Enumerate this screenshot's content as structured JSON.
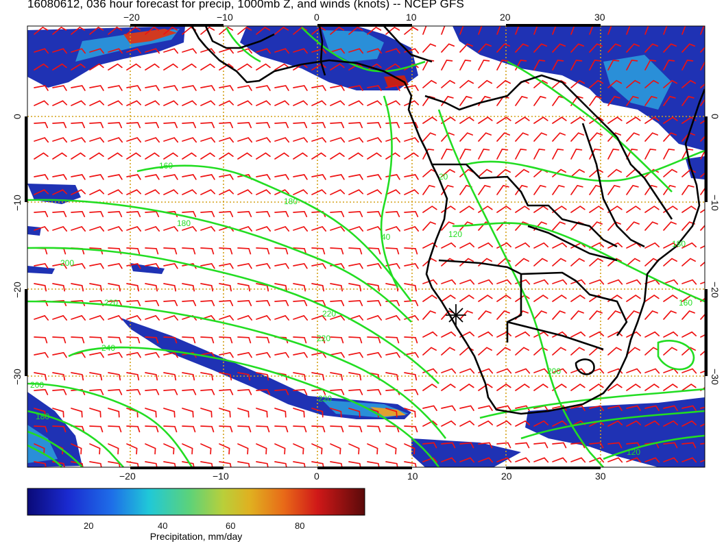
{
  "title": "16080612, 036 hour forecast for precip, 1000mb Z, and winds (knots) -- NCEP GFS",
  "map": {
    "lon_ticks": [
      "−20",
      "−10",
      "0",
      "10",
      "20",
      "30"
    ],
    "lat_ticks": [
      "0",
      "−10",
      "−20",
      "−30"
    ],
    "contour_labels": [
      "160",
      "180",
      "180",
      "200",
      "220",
      "220",
      "240",
      "220",
      "220",
      "40",
      "120",
      "200",
      "180",
      "20",
      "180",
      "200",
      "120",
      "160"
    ],
    "colors": {
      "contours": "#22dd22",
      "wind_barbs": "#ee1111",
      "coastlines": "#000000",
      "grid": "#d4a017",
      "precip_low": "#1a2aa8",
      "precip_high": "#cc1111"
    }
  },
  "colorbar": {
    "ticks": [
      "20",
      "40",
      "60",
      "80"
    ],
    "label": "Precipitation, mm/day",
    "range": [
      0,
      100
    ]
  }
}
